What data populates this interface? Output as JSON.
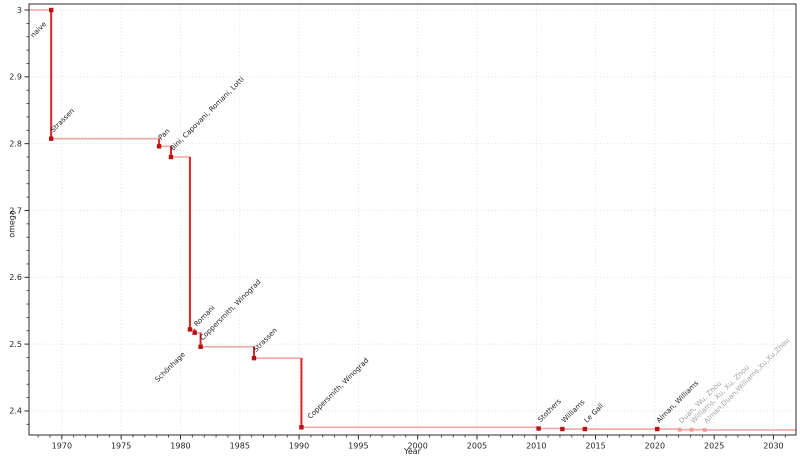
{
  "figure": {
    "xlabel": "Year",
    "ylabel": "omega"
  },
  "colors": {
    "step_line": "#f2a6a6",
    "drop_line": "#dd2626",
    "marker_confirmed": "#b31414",
    "marker_unconfirmed": "#f09b9b",
    "label_confirmed": "#1f1f1f",
    "label_unconfirmed": "#a3a3a3",
    "grid": "#dbdbdb",
    "axis": "#2b2b2b",
    "tick_label": "#262626"
  },
  "chart_data": {
    "type": "line",
    "title": "",
    "subtitle": "",
    "xlabel": "Year",
    "ylabel": "omega",
    "drawstyle": "steps-post",
    "legend": "none",
    "grid": "dotted, major ticks only",
    "xlim": [
      1967.23,
      2031.9
    ],
    "ylim": [
      2.364,
      3.009
    ],
    "x_major_ticks": [
      1970,
      1975,
      1980,
      1985,
      1990,
      1995,
      2000,
      2005,
      2010,
      2015,
      2020,
      2025,
      2030
    ],
    "x_minor_step": 1,
    "y_major_ticks": [
      2.4,
      2.5,
      2.6,
      2.7,
      2.8,
      2.9,
      3
    ],
    "y_major_tick_labels": [
      "2.4",
      "2.5",
      "2.6",
      "2.7",
      "2.8",
      "2.9",
      "3"
    ],
    "y_minor_step": 0.02,
    "points": [
      {
        "year": 1969.1,
        "omega": 3.0,
        "label": "naive",
        "confirmed": true,
        "label_offset": [
          -18,
          28
        ]
      },
      {
        "year": 1969.1,
        "omega": 2.8074,
        "label": "Strassen",
        "confirmed": true
      },
      {
        "year": 1978.2,
        "omega": 2.796,
        "label": "Pan",
        "confirmed": true
      },
      {
        "year": 1979.2,
        "omega": 2.78,
        "label": "Bini, Capovani, Romani, Lotti",
        "confirmed": true
      },
      {
        "year": 1980.8,
        "omega": 2.522,
        "label": "Schönhage",
        "confirmed": true,
        "label_offset": [
          -32,
          53
        ]
      },
      {
        "year": 1981.2,
        "omega": 2.517,
        "label": "Romani",
        "confirmed": true
      },
      {
        "year": 1981.7,
        "omega": 2.496,
        "label": "Coppersmith, Winograd",
        "confirmed": true
      },
      {
        "year": 1986.2,
        "omega": 2.479,
        "label": "Strassen",
        "confirmed": true
      },
      {
        "year": 1990.2,
        "omega": 2.3755,
        "label": "Coppersmith, Winograd",
        "confirmed": true,
        "label_offset": [
          9,
          -8
        ]
      },
      {
        "year": 2010.2,
        "omega": 2.3737,
        "label": "Stothers",
        "confirmed": true
      },
      {
        "year": 2012.2,
        "omega": 2.3729,
        "label": "Williams",
        "confirmed": true
      },
      {
        "year": 2014.1,
        "omega": 2.3729,
        "label": "Le Gall",
        "confirmed": true
      },
      {
        "year": 2020.2,
        "omega": 2.3729,
        "label": "Alman, Williams",
        "confirmed": true
      },
      {
        "year": 2022.1,
        "omega": 2.3719,
        "label": "Duan, Wu, Zhou",
        "confirmed": false
      },
      {
        "year": 2023.1,
        "omega": 2.3719,
        "label": "Williams, Xu, Xu, Zhou",
        "confirmed": false
      },
      {
        "year": 2024.2,
        "omega": 2.3716,
        "label": "Alman,Duan,Williams,Xu,Xu,Zhou",
        "confirmed": false
      }
    ],
    "line_enters_from_left_at": 3.0,
    "line_exits_right_at": 2.3716
  }
}
